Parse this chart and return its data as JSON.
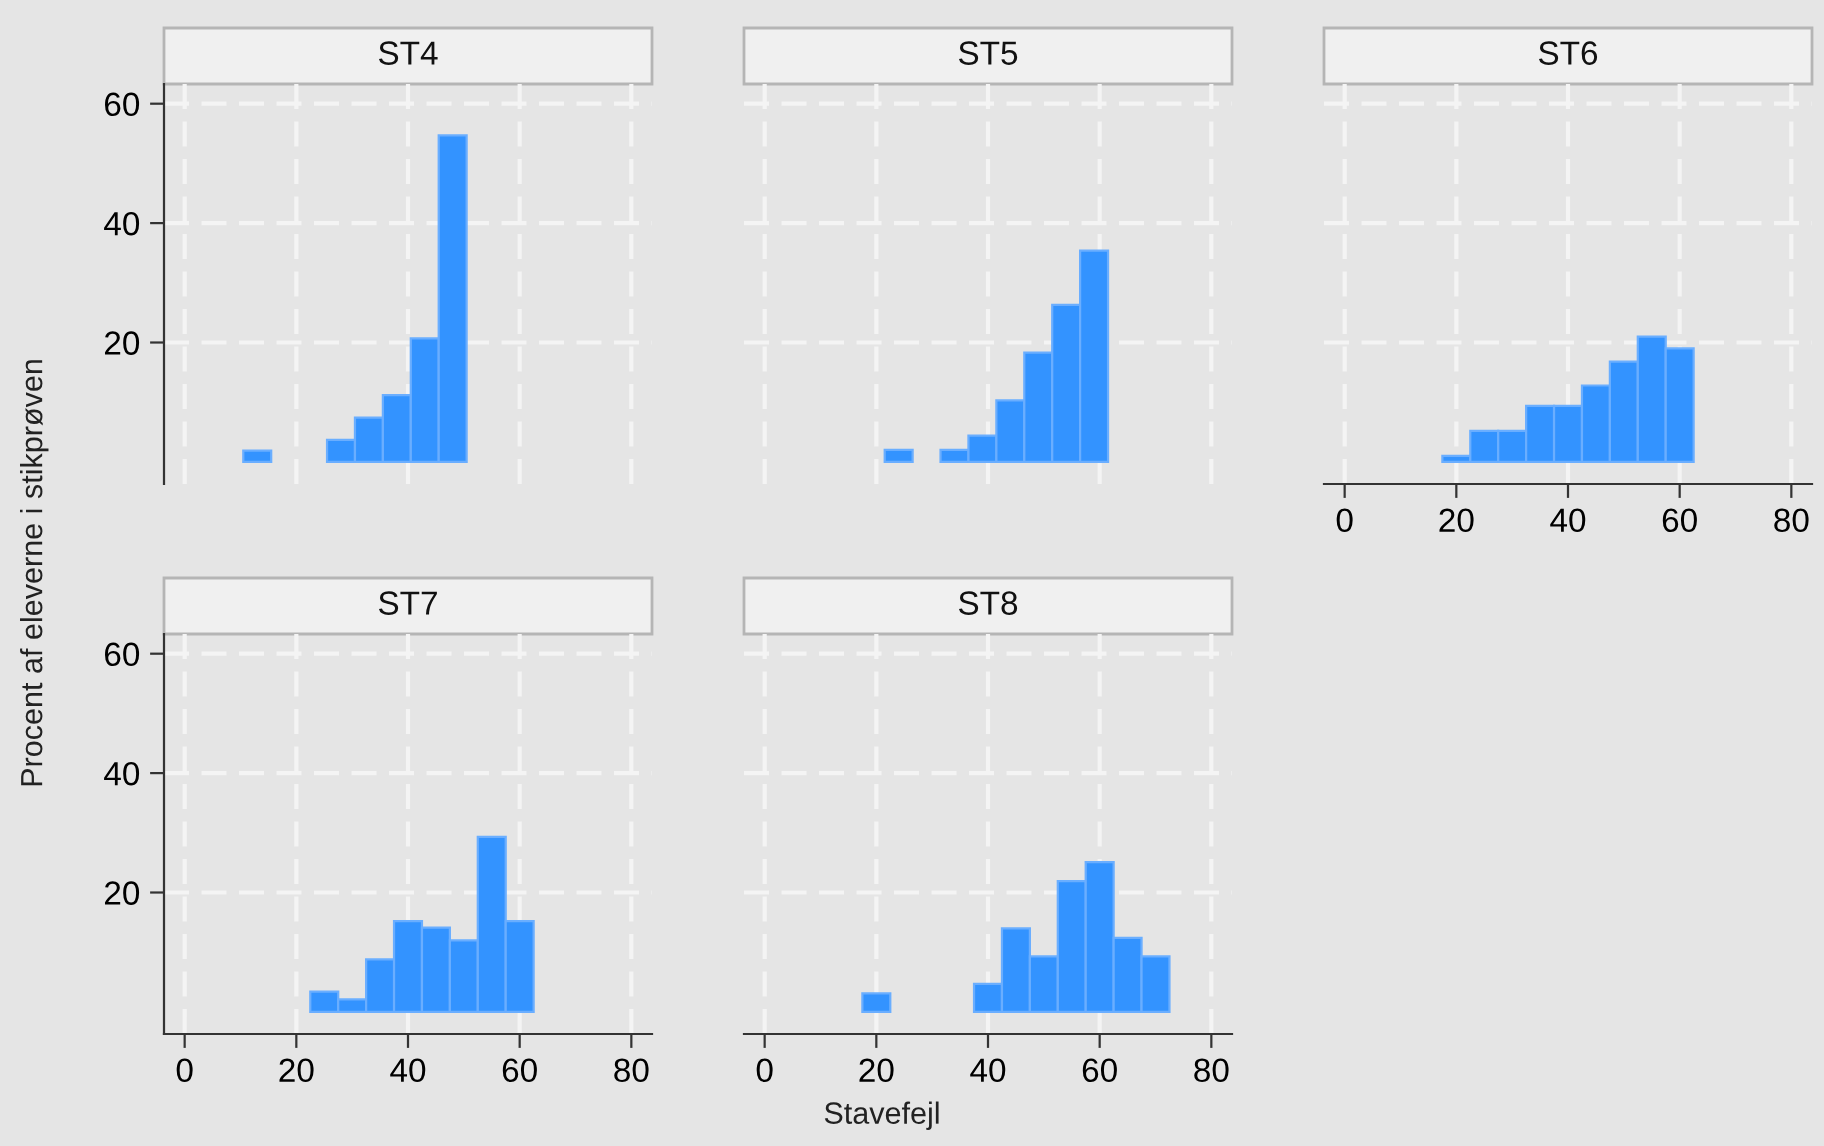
{
  "chart_data": [
    {
      "type": "histogram",
      "title": "ST4",
      "ylabel": "Procent af eleverne i stikprøven",
      "bins": [
        10.5,
        15.5,
        20.5,
        25.5,
        30.5,
        35.5,
        40.5,
        45.5,
        50.5
      ],
      "values": [
        1.9,
        0,
        0,
        3.7,
        7.4,
        11.2,
        20.7,
        54.7
      ],
      "color": "#3393ff",
      "xlim": [
        -3.7,
        83.7
      ],
      "ylim": [
        -3.7,
        63.3
      ],
      "xticks": [
        0,
        20,
        40,
        60,
        80
      ],
      "yticks": [
        20,
        40,
        60
      ],
      "grid": true,
      "tick_labels": "y"
    },
    {
      "type": "histogram",
      "title": "ST5",
      "bins": [
        21.5,
        26.5,
        31.5,
        36.5,
        41.5,
        46.5,
        51.5,
        56.5,
        61.5
      ],
      "values": [
        2.0,
        0,
        2.0,
        4.4,
        10.3,
        18.3,
        26.3,
        35.4
      ],
      "color": "#3393ff",
      "xlim": [
        -3.7,
        83.7
      ],
      "ylim": [
        -3.7,
        63.3
      ],
      "xticks": [
        0,
        20,
        40,
        60,
        80
      ],
      "yticks": [
        20,
        40,
        60
      ],
      "grid": true,
      "tick_labels": false
    },
    {
      "type": "histogram",
      "title": "ST6",
      "bins": [
        17.5,
        22.5,
        27.5,
        32.5,
        37.5,
        42.5,
        47.5,
        52.5,
        57.5,
        62.5
      ],
      "values": [
        1.0,
        5.2,
        5.2,
        9.4,
        9.4,
        12.8,
        16.8,
        21.0,
        19.0
      ],
      "color": "#3393ff",
      "xlim": [
        -3.7,
        83.7
      ],
      "ylim": [
        -3.7,
        63.3
      ],
      "xticks": [
        0,
        20,
        40,
        60,
        80
      ],
      "yticks": [
        20,
        40,
        60
      ],
      "grid": true,
      "tick_labels": "x"
    },
    {
      "type": "histogram",
      "title": "ST7",
      "bins": [
        22.5,
        27.5,
        32.5,
        37.5,
        42.5,
        47.5,
        52.5,
        57.5,
        62.5
      ],
      "values": [
        3.4,
        2.1,
        8.8,
        15.2,
        14.1,
        12.0,
        29.3,
        15.2
      ],
      "color": "#3393ff",
      "xlim": [
        -3.7,
        83.7
      ],
      "ylim": [
        -3.7,
        63.3
      ],
      "xticks": [
        0,
        20,
        40,
        60,
        80
      ],
      "yticks": [
        20,
        40,
        60
      ],
      "grid": true
    },
    {
      "type": "histogram",
      "title": "ST8",
      "xlabel": "Stavefejl",
      "bins": [
        17.5,
        22.5,
        27.5,
        32.5,
        37.5,
        42.5,
        47.5,
        52.5,
        57.5,
        62.5,
        67.5,
        72.5
      ],
      "values": [
        3.1,
        0,
        0,
        0,
        4.7,
        14.0,
        9.3,
        21.9,
        25.1,
        12.4,
        9.3
      ],
      "color": "#3393ff",
      "xlim": [
        -3.7,
        83.7
      ],
      "ylim": [
        -3.7,
        63.3
      ],
      "xticks": [
        0,
        20,
        40,
        60,
        80
      ],
      "yticks": [
        20,
        40,
        60
      ],
      "grid": true,
      "tick_labels": "x"
    }
  ]
}
